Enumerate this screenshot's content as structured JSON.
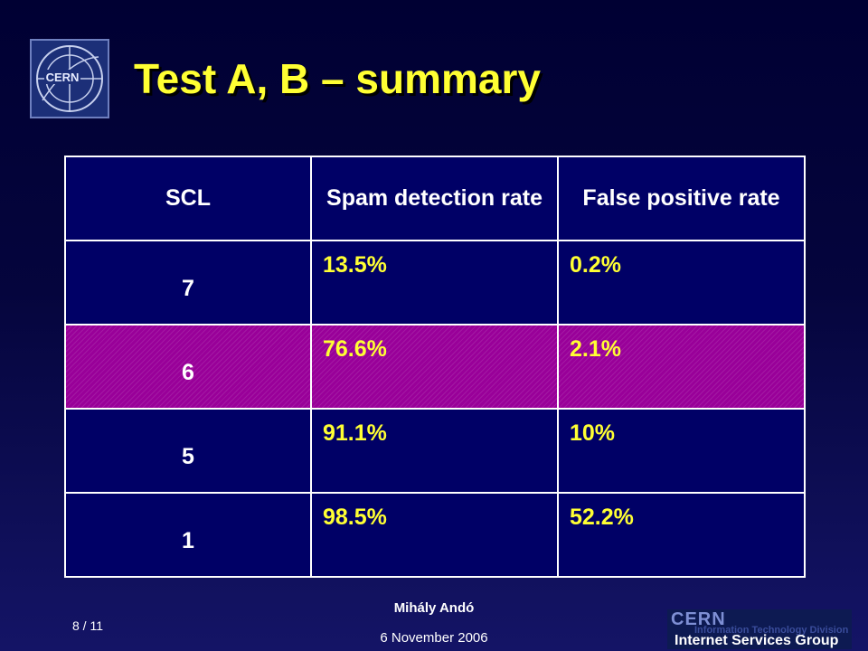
{
  "slide": {
    "title": "Test A, B – summary",
    "page_number": "8 / 11",
    "author": "Mihály Andó",
    "date": "6 November 2006"
  },
  "logo": {
    "icon": "cern-logo-icon",
    "text": "CERN"
  },
  "footer_logo": {
    "line1": "CERN",
    "line2": "Information Technology Division",
    "line3": "Internet Services Group"
  },
  "table": {
    "headers": [
      "SCL",
      "Spam detection rate",
      "False positive rate"
    ],
    "rows": [
      {
        "scl": "7",
        "spam_detection_rate": "13.5%",
        "false_positive_rate": "0.2%",
        "highlighted": false
      },
      {
        "scl": "6",
        "spam_detection_rate": "76.6%",
        "false_positive_rate": "2.1%",
        "highlighted": true
      },
      {
        "scl": "5",
        "spam_detection_rate": "91.1%",
        "false_positive_rate": "10%",
        "highlighted": false
      },
      {
        "scl": "1",
        "spam_detection_rate": "98.5%",
        "false_positive_rate": "52.2%",
        "highlighted": false
      }
    ]
  },
  "colors": {
    "background_top": "#000033",
    "background_bottom": "#141466",
    "title": "#ffff33",
    "table_cell": "#000066",
    "highlight_row": "#990099",
    "value_text": "#ffff33",
    "border": "#ffffff"
  }
}
